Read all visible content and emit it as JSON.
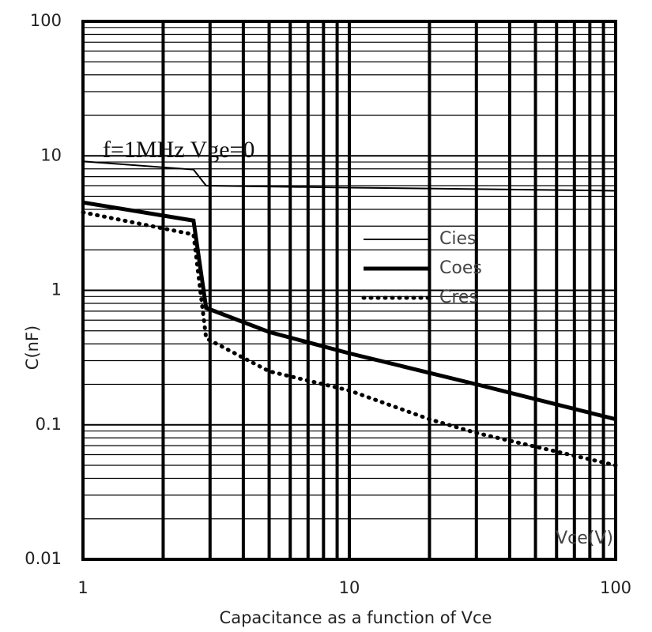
{
  "chart_data": {
    "type": "line",
    "title": "Capacitance as a function of Vce",
    "ylabel": "C(nF)",
    "annotations": [
      "f=1MHz Vge=0",
      "Vce(V)"
    ],
    "log_x": true,
    "log_y": true,
    "grid": true,
    "legend": "center-right",
    "xlim": [
      1,
      100
    ],
    "xticks": [
      1,
      10,
      100
    ],
    "ylim": [
      0.01,
      100
    ],
    "yticks": [
      0.01,
      0.1,
      1,
      10,
      100
    ],
    "series": [
      {
        "name": "Cies",
        "color": "#000000",
        "style": "solid",
        "x": [
          1,
          2.6,
          2.9,
          10,
          100
        ],
        "values": [
          9.1,
          7.9,
          6.0,
          5.8,
          5.5
        ]
      },
      {
        "name": "Coes",
        "color": "#000000",
        "style": "solid",
        "x": [
          1,
          2.6,
          2.9,
          5,
          10,
          30,
          100
        ],
        "values": [
          4.5,
          3.3,
          0.74,
          0.49,
          0.34,
          0.2,
          0.11
        ]
      },
      {
        "name": "Cres",
        "color": "#000000",
        "style": "dotted",
        "x": [
          1,
          2.6,
          2.9,
          5,
          10,
          20,
          30,
          100
        ],
        "values": [
          3.8,
          2.6,
          0.44,
          0.25,
          0.18,
          0.11,
          0.087,
          0.05
        ]
      }
    ]
  }
}
